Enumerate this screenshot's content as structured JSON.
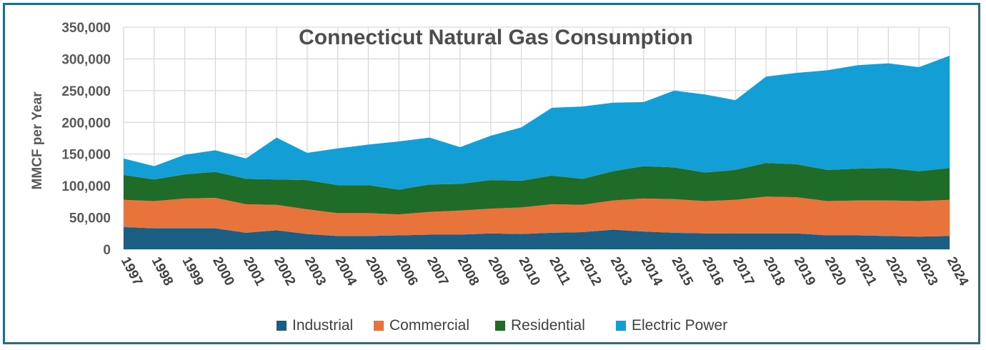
{
  "chart_data": {
    "type": "area",
    "stacked": true,
    "title": "Connecticut Natural Gas Consumption",
    "ylabel": "MMCF per Year",
    "xlabel": "",
    "ylim": [
      0,
      350000
    ],
    "yticks": [
      0,
      50000,
      100000,
      150000,
      200000,
      250000,
      300000,
      350000
    ],
    "ytick_labels": [
      "0",
      "50,000",
      "100,000",
      "150,000",
      "200,000",
      "250,000",
      "300,000",
      "350,000"
    ],
    "grid": true,
    "legend_position": "bottom",
    "categories": [
      "1997",
      "1998",
      "1999",
      "2000",
      "2001",
      "2002",
      "2003",
      "2004",
      "2005",
      "2006",
      "2007",
      "2008",
      "2009",
      "2010",
      "2011",
      "2012",
      "2013",
      "2014",
      "2015",
      "2016",
      "2017",
      "2018",
      "2019",
      "2020",
      "2021",
      "2022",
      "2023",
      "2024"
    ],
    "series": [
      {
        "name": "Industrial",
        "color": "#1b5e84",
        "values": [
          35000,
          33000,
          33000,
          33000,
          26000,
          30000,
          24000,
          21000,
          21000,
          22000,
          23000,
          23000,
          25000,
          24000,
          26000,
          27000,
          31000,
          28000,
          26000,
          25000,
          25000,
          25000,
          25000,
          22000,
          22000,
          21000,
          20000,
          21000
        ]
      },
      {
        "name": "Commercial",
        "color": "#e8743b",
        "values": [
          43000,
          43000,
          47000,
          48000,
          45000,
          40000,
          39000,
          36000,
          36000,
          33000,
          36000,
          38000,
          39000,
          42000,
          45000,
          43000,
          46000,
          52000,
          53000,
          51000,
          53000,
          58000,
          57000,
          54000,
          55000,
          56000,
          56000,
          57000
        ]
      },
      {
        "name": "Residential",
        "color": "#1f6b28",
        "values": [
          39000,
          34000,
          38000,
          41000,
          40000,
          40000,
          46000,
          44000,
          44000,
          39000,
          43000,
          42000,
          45000,
          42000,
          45000,
          41000,
          46000,
          51000,
          50000,
          45000,
          47000,
          53000,
          52000,
          49000,
          50000,
          51000,
          47000,
          50000
        ]
      },
      {
        "name": "Electric Power",
        "color": "#139fd6",
        "values": [
          26000,
          21000,
          31000,
          34000,
          32000,
          66000,
          43000,
          58000,
          64000,
          76000,
          74000,
          58000,
          70000,
          84000,
          107000,
          114000,
          108000,
          101000,
          121000,
          123000,
          110000,
          136000,
          144000,
          157000,
          163000,
          165000,
          164000,
          177000
        ]
      }
    ]
  }
}
